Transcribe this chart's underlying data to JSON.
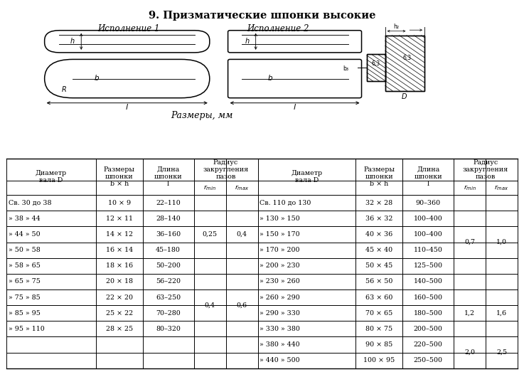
{
  "title": "9. Призматические шпонки высокие",
  "ispolnenie1": "Исполнение 1",
  "ispolnenie2": "Исполнение 2",
  "razm": "Размеры, мм",
  "left_rows": [
    [
      "Св. 30 до 38",
      "10 × 9",
      "22–110"
    ],
    [
      "» 38 » 44",
      "12 × 11",
      "28–140"
    ],
    [
      "» 44 » 50",
      "14 × 12",
      "36–160"
    ],
    [
      "» 50 » 58",
      "16 × 14",
      "45–180"
    ],
    [
      "» 58 » 65",
      "18 × 16",
      "50–200"
    ],
    [
      "» 65 » 75",
      "20 × 18",
      "56–220"
    ],
    [
      "» 75 » 85",
      "22 × 20",
      "63–250"
    ],
    [
      "» 85 » 95",
      "25 × 22",
      "70–280"
    ],
    [
      "» 95 » 110",
      "28 × 25",
      "80–320"
    ]
  ],
  "right_rows": [
    [
      "Св. 110 до 130",
      "32 × 28",
      "90–360"
    ],
    [
      "» 130 » 150",
      "36 × 32",
      "100–400"
    ],
    [
      "» 150 » 170",
      "40 × 36",
      "100–400"
    ],
    [
      "» 170 » 200",
      "45 × 40",
      "110–450"
    ],
    [
      "» 200 » 230",
      "50 × 45",
      "125–500"
    ],
    [
      "» 230 » 260",
      "56 × 50",
      "140–500"
    ],
    [
      "» 260 » 290",
      "63 × 60",
      "160–500"
    ],
    [
      "» 290 » 330",
      "70 × 65",
      "180–500"
    ],
    [
      "» 330 » 380",
      "80 × 75",
      "200–500"
    ],
    [
      "» 380 » 440",
      "90 × 85",
      "220–500"
    ],
    [
      "» 440 » 500",
      "100 × 95",
      "250–500"
    ]
  ],
  "left_rmin_groups": [
    [
      0,
      4,
      "0,25"
    ],
    [
      5,
      8,
      "0,4"
    ]
  ],
  "left_rmax_groups": [
    [
      0,
      4,
      "0,4"
    ],
    [
      5,
      8,
      "0,6"
    ]
  ],
  "right_rmin_groups": [
    [
      0,
      5,
      "0,7"
    ],
    [
      6,
      8,
      "1,2"
    ],
    [
      9,
      10,
      "2,0"
    ]
  ],
  "right_rmax_groups": [
    [
      0,
      5,
      "1,0"
    ],
    [
      6,
      8,
      "1,6"
    ],
    [
      9,
      10,
      "2,5"
    ]
  ]
}
